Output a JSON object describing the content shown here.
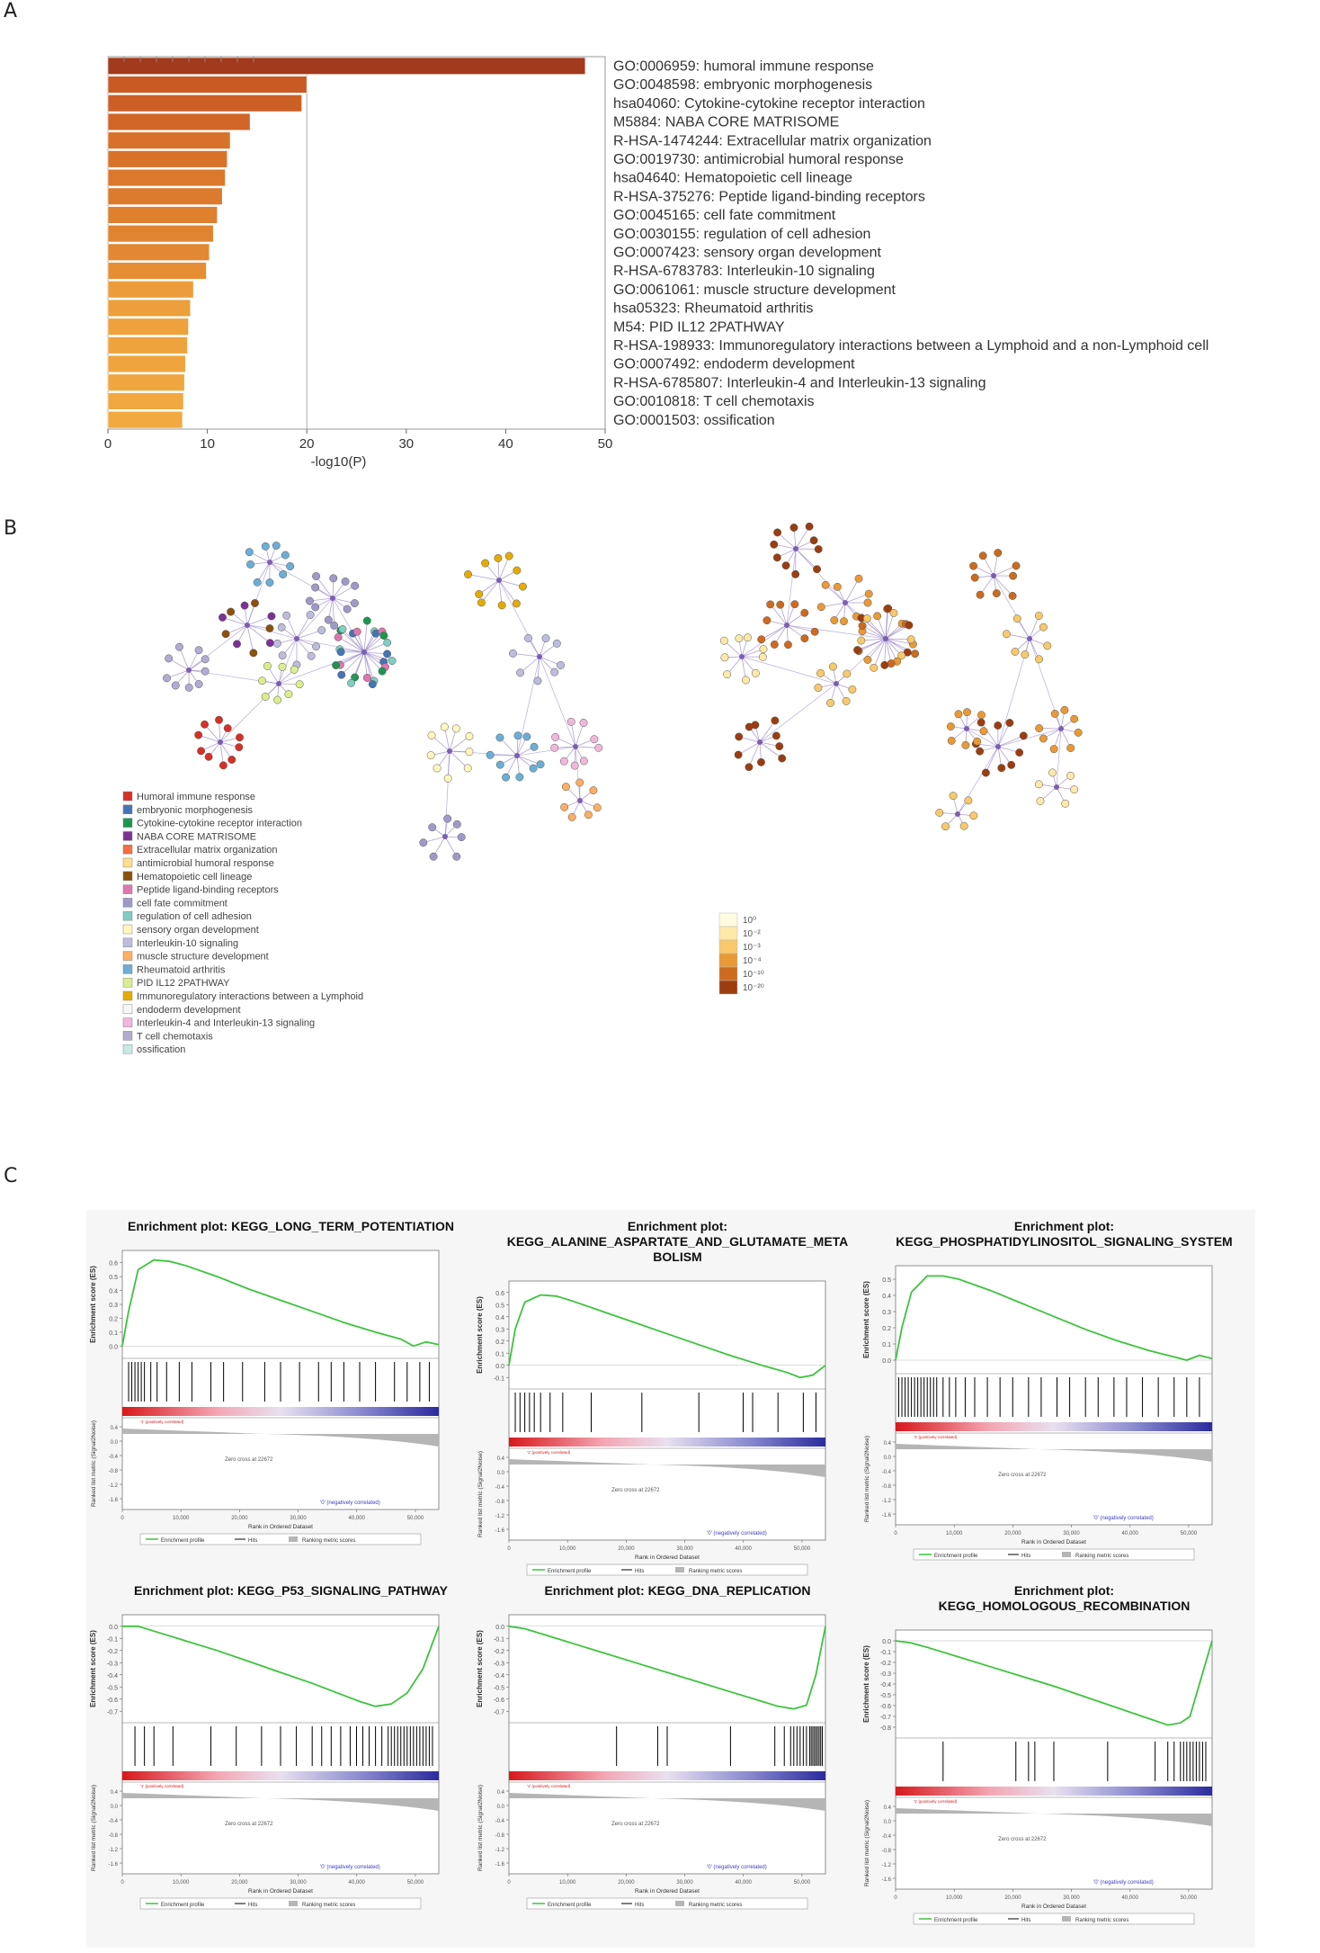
{
  "panel_labels": {
    "a": "A",
    "b": "B",
    "c": "C"
  },
  "chart_data": [
    {
      "type": "bar",
      "orientation": "horizontal",
      "panel": "A",
      "categories": [
        "GO:0006959: humoral immune response",
        "GO:0048598: embryonic morphogenesis",
        "hsa04060: Cytokine-cytokine receptor interaction",
        "M5884: NABA CORE MATRISOME",
        "R-HSA-1474244: Extracellular matrix organization",
        "GO:0019730: antimicrobial humoral response",
        "hsa04640: Hematopoietic cell lineage",
        "R-HSA-375276: Peptide ligand-binding receptors",
        "GO:0045165: cell fate commitment",
        "GO:0030155: regulation of cell adhesion",
        "GO:0007423: sensory organ development",
        "R-HSA-6783783: Interleukin-10 signaling",
        "GO:0061061: muscle structure development",
        "hsa05323: Rheumatoid arthritis",
        "M54: PID IL12 2PATHWAY",
        "R-HSA-198933: Immunoregulatory interactions between a Lymphoid and a non-Lymphoid cell",
        "GO:0007492: endoderm development",
        "R-HSA-6785807: Interleukin-4 and Interleukin-13 signaling",
        "GO:0010818: T cell chemotaxis",
        "GO:0001503: ossification"
      ],
      "values": [
        48,
        20,
        19.5,
        14.3,
        12.3,
        12.0,
        11.8,
        11.5,
        11.0,
        10.6,
        10.2,
        9.9,
        8.6,
        8.3,
        8.1,
        8.0,
        7.8,
        7.7,
        7.6,
        7.5
      ],
      "bar_colors": [
        "#a23a1d",
        "#c95a24",
        "#cd5f26",
        "#d26628",
        "#d8722b",
        "#d8722b",
        "#db782d",
        "#dc7a2e",
        "#df802f",
        "#e18431",
        "#e38832",
        "#e68e34",
        "#ec9c3a",
        "#ed9f3b",
        "#eea13c",
        "#efa33d",
        "#efa43e",
        "#f0a63e",
        "#f0a73f",
        "#f1a940"
      ],
      "xlabel": "-log10(P)",
      "xlim": [
        0,
        50
      ],
      "xticks": [
        0,
        10,
        20,
        30,
        40,
        50
      ]
    },
    {
      "type": "line",
      "panel": "C",
      "subplots": [
        {
          "title_lines": [
            "Enrichment plot: KEGG_LONG_TERM_POTENTIATION"
          ],
          "ylabel": "Enrichment score (ES)",
          "yticks": [
            "0.6",
            "0.5",
            "0.4",
            "0.3",
            "0.2",
            "0.1",
            "0.0"
          ],
          "ylim": [
            -0.05,
            0.65
          ],
          "x": [
            0,
            0.02,
            0.05,
            0.1,
            0.15,
            0.2,
            0.3,
            0.4,
            0.5,
            0.6,
            0.7,
            0.8,
            0.88,
            0.92,
            0.96,
            1.0
          ],
          "es": [
            0.0,
            0.25,
            0.55,
            0.62,
            0.61,
            0.58,
            0.5,
            0.41,
            0.33,
            0.25,
            0.17,
            0.1,
            0.05,
            0.0,
            0.03,
            0.01
          ],
          "hits": [
            0.02,
            0.03,
            0.04,
            0.05,
            0.06,
            0.07,
            0.09,
            0.11,
            0.14,
            0.18,
            0.22,
            0.28,
            0.32,
            0.38,
            0.45,
            0.5,
            0.56,
            0.62,
            0.66,
            0.7,
            0.75,
            0.8,
            0.86,
            0.9,
            0.94,
            0.97
          ]
        },
        {
          "title_lines": [
            "Enrichment plot:",
            "KEGG_ALANINE_ASPARTATE_AND_GLUTAMATE_META",
            "BOLISM"
          ],
          "ylabel": "Enrichment score (ES)",
          "yticks": [
            "0.6",
            "0.5",
            "0.4",
            "0.3",
            "0.2",
            "0.1",
            "0.0",
            "-0.1"
          ],
          "ylim": [
            -0.15,
            0.65
          ],
          "x": [
            0,
            0.02,
            0.05,
            0.1,
            0.15,
            0.2,
            0.3,
            0.4,
            0.5,
            0.6,
            0.7,
            0.8,
            0.88,
            0.92,
            0.96,
            1.0
          ],
          "es": [
            0.0,
            0.3,
            0.52,
            0.58,
            0.57,
            0.53,
            0.44,
            0.35,
            0.26,
            0.17,
            0.08,
            0.0,
            -0.06,
            -0.1,
            -0.08,
            0.0
          ],
          "hits": [
            0.02,
            0.035,
            0.05,
            0.065,
            0.08,
            0.1,
            0.13,
            0.17,
            0.26,
            0.42,
            0.6,
            0.74,
            0.77,
            0.85,
            0.93,
            0.97
          ]
        },
        {
          "title_lines": [
            "Enrichment plot:",
            "KEGG_PHOSPHATIDYLINOSITOL_SIGNALING_SYSTEM"
          ],
          "ylabel": "Enrichment score (ES)",
          "yticks": [
            "0.5",
            "0.4",
            "0.3",
            "0.2",
            "0.1",
            "0.0"
          ],
          "ylim": [
            -0.05,
            0.55
          ],
          "x": [
            0,
            0.02,
            0.05,
            0.1,
            0.15,
            0.2,
            0.3,
            0.4,
            0.5,
            0.6,
            0.7,
            0.8,
            0.88,
            0.92,
            0.96,
            1.0
          ],
          "es": [
            0.0,
            0.2,
            0.42,
            0.52,
            0.52,
            0.5,
            0.43,
            0.35,
            0.27,
            0.19,
            0.12,
            0.06,
            0.02,
            0.0,
            0.03,
            0.01
          ],
          "hits": [
            0.01,
            0.02,
            0.03,
            0.04,
            0.05,
            0.06,
            0.07,
            0.08,
            0.09,
            0.1,
            0.11,
            0.12,
            0.13,
            0.15,
            0.17,
            0.19,
            0.22,
            0.25,
            0.29,
            0.33,
            0.37,
            0.42,
            0.46,
            0.51,
            0.55,
            0.6,
            0.64,
            0.69,
            0.73,
            0.78,
            0.83,
            0.88,
            0.92,
            0.96
          ]
        },
        {
          "title_lines": [
            "Enrichment plot: KEGG_P53_SIGNALING_PATHWAY"
          ],
          "ylabel": "Enrichment score (ES)",
          "yticks": [
            "0.0",
            "-0.1",
            "-0.2",
            "-0.3",
            "-0.4",
            "-0.5",
            "-0.6",
            "-0.7"
          ],
          "ylim": [
            -0.75,
            0.05
          ],
          "x": [
            0,
            0.05,
            0.1,
            0.2,
            0.3,
            0.4,
            0.5,
            0.6,
            0.7,
            0.75,
            0.8,
            0.85,
            0.9,
            0.95,
            1.0
          ],
          "es": [
            0.0,
            0.0,
            -0.04,
            -0.12,
            -0.2,
            -0.29,
            -0.38,
            -0.47,
            -0.57,
            -0.62,
            -0.66,
            -0.64,
            -0.55,
            -0.35,
            0.0
          ],
          "hits": [
            0.04,
            0.07,
            0.1,
            0.16,
            0.28,
            0.36,
            0.44,
            0.5,
            0.55,
            0.6,
            0.63,
            0.66,
            0.69,
            0.72,
            0.74,
            0.76,
            0.78,
            0.8,
            0.82,
            0.84,
            0.85,
            0.86,
            0.87,
            0.88,
            0.89,
            0.9,
            0.91,
            0.92,
            0.93,
            0.94,
            0.95,
            0.96,
            0.97,
            0.98
          ]
        },
        {
          "title_lines": [
            "Enrichment plot: KEGG_DNA_REPLICATION"
          ],
          "ylabel": "Enrichment score (ES)",
          "yticks": [
            "0.0",
            "-0.1",
            "-0.2",
            "-0.3",
            "-0.4",
            "-0.5",
            "-0.6",
            "-0.7"
          ],
          "ylim": [
            -0.75,
            0.05
          ],
          "x": [
            0,
            0.05,
            0.1,
            0.2,
            0.3,
            0.4,
            0.5,
            0.6,
            0.7,
            0.8,
            0.85,
            0.9,
            0.94,
            0.97,
            1.0
          ],
          "es": [
            0.0,
            -0.02,
            -0.06,
            -0.14,
            -0.22,
            -0.3,
            -0.38,
            -0.46,
            -0.54,
            -0.62,
            -0.66,
            -0.68,
            -0.65,
            -0.4,
            0.0
          ],
          "hits": [
            0.34,
            0.47,
            0.5,
            0.7,
            0.84,
            0.87,
            0.89,
            0.9,
            0.91,
            0.92,
            0.93,
            0.94,
            0.95,
            0.955,
            0.96,
            0.965,
            0.97,
            0.975,
            0.98,
            0.985,
            0.99
          ]
        },
        {
          "title_lines": [
            "Enrichment plot:",
            "KEGG_HOMOLOGOUS_RECOMBINATION"
          ],
          "ylabel": "Enrichment score (ES)",
          "yticks": [
            "0.0",
            "-0.1",
            "-0.2",
            "-0.3",
            "-0.4",
            "-0.5",
            "-0.6",
            "-0.7",
            "-0.8"
          ],
          "ylim": [
            -0.85,
            0.05
          ],
          "x": [
            0,
            0.05,
            0.1,
            0.2,
            0.3,
            0.4,
            0.5,
            0.6,
            0.7,
            0.8,
            0.86,
            0.9,
            0.93,
            0.96,
            1.0
          ],
          "es": [
            0.0,
            -0.02,
            -0.06,
            -0.15,
            -0.24,
            -0.33,
            -0.42,
            -0.52,
            -0.62,
            -0.72,
            -0.78,
            -0.76,
            -0.7,
            -0.4,
            0.0
          ],
          "hits": [
            0.15,
            0.38,
            0.42,
            0.44,
            0.5,
            0.67,
            0.82,
            0.86,
            0.88,
            0.9,
            0.91,
            0.92,
            0.93,
            0.94,
            0.95,
            0.96,
            0.97,
            0.98
          ]
        }
      ]
    }
  ],
  "network_legend": [
    {
      "label": "Humoral immune response",
      "color": "#d73027"
    },
    {
      "label": "embryonic morphogenesis",
      "color": "#4575b4"
    },
    {
      "label": "Cytokine-cytokine receptor interaction",
      "color": "#1a9850"
    },
    {
      "label": "NABA CORE MATRISOME",
      "color": "#7b3294"
    },
    {
      "label": "Extracellular matrix organization",
      "color": "#f46d43"
    },
    {
      "label": "antimicrobial humoral response",
      "color": "#fee08b"
    },
    {
      "label": "Hematopoietic cell lineage",
      "color": "#8c510a"
    },
    {
      "label": "Peptide ligand-binding receptors",
      "color": "#de77ae"
    },
    {
      "label": "cell fate commitment",
      "color": "#9e9ac8"
    },
    {
      "label": "regulation of cell adhesion",
      "color": "#80cdc1"
    },
    {
      "label": "sensory organ development",
      "color": "#fff7bc"
    },
    {
      "label": "Interleukin-10 signaling",
      "color": "#bcbddc"
    },
    {
      "label": "muscle structure development",
      "color": "#fdae61"
    },
    {
      "label": "Rheumatoid arthritis",
      "color": "#6baed6"
    },
    {
      "label": "PID IL12 2PATHWAY",
      "color": "#d9ef8b"
    },
    {
      "label": "Immunoregulatory interactions between a Lymphoid",
      "color": "#e6ab02"
    },
    {
      "label": "endoderm development",
      "color": "#f7f7f7"
    },
    {
      "label": "Interleukin-4 and Interleukin-13 signaling",
      "color": "#f1b6da"
    },
    {
      "label": "T cell chemotaxis",
      "color": "#b2abd2"
    },
    {
      "label": "ossification",
      "color": "#c7eae5"
    }
  ],
  "pvalue_legend": {
    "labels": [
      "10⁰",
      "10⁻²",
      "10⁻³",
      "10⁻⁴",
      "10⁻¹⁰",
      "10⁻²⁰"
    ],
    "colors": [
      "#fffbe0",
      "#fde9a8",
      "#f8c86a",
      "#e99935",
      "#cc6a1e",
      "#9c3d10"
    ]
  },
  "gsea_common": {
    "rank_ylabel": "Ranked list metric (Signal2Noise)",
    "x_label": "Rank in Ordered Dataset",
    "x_ticks": [
      "0",
      "10,000",
      "20,000",
      "30,000",
      "40,000",
      "50,000"
    ],
    "rank_yticks": [
      "0.4",
      "0.0",
      "-0.4",
      "-0.8",
      "-1.2",
      "-1.6"
    ],
    "zero_cross": "Zero cross at 22672",
    "neg_label": "'0' (negatively correlated)",
    "pos_label": "'1' (positively correlated)",
    "legend_es": "Enrichment profile",
    "legend_hits": "Hits",
    "legend_rank": "Ranking metric scores"
  }
}
